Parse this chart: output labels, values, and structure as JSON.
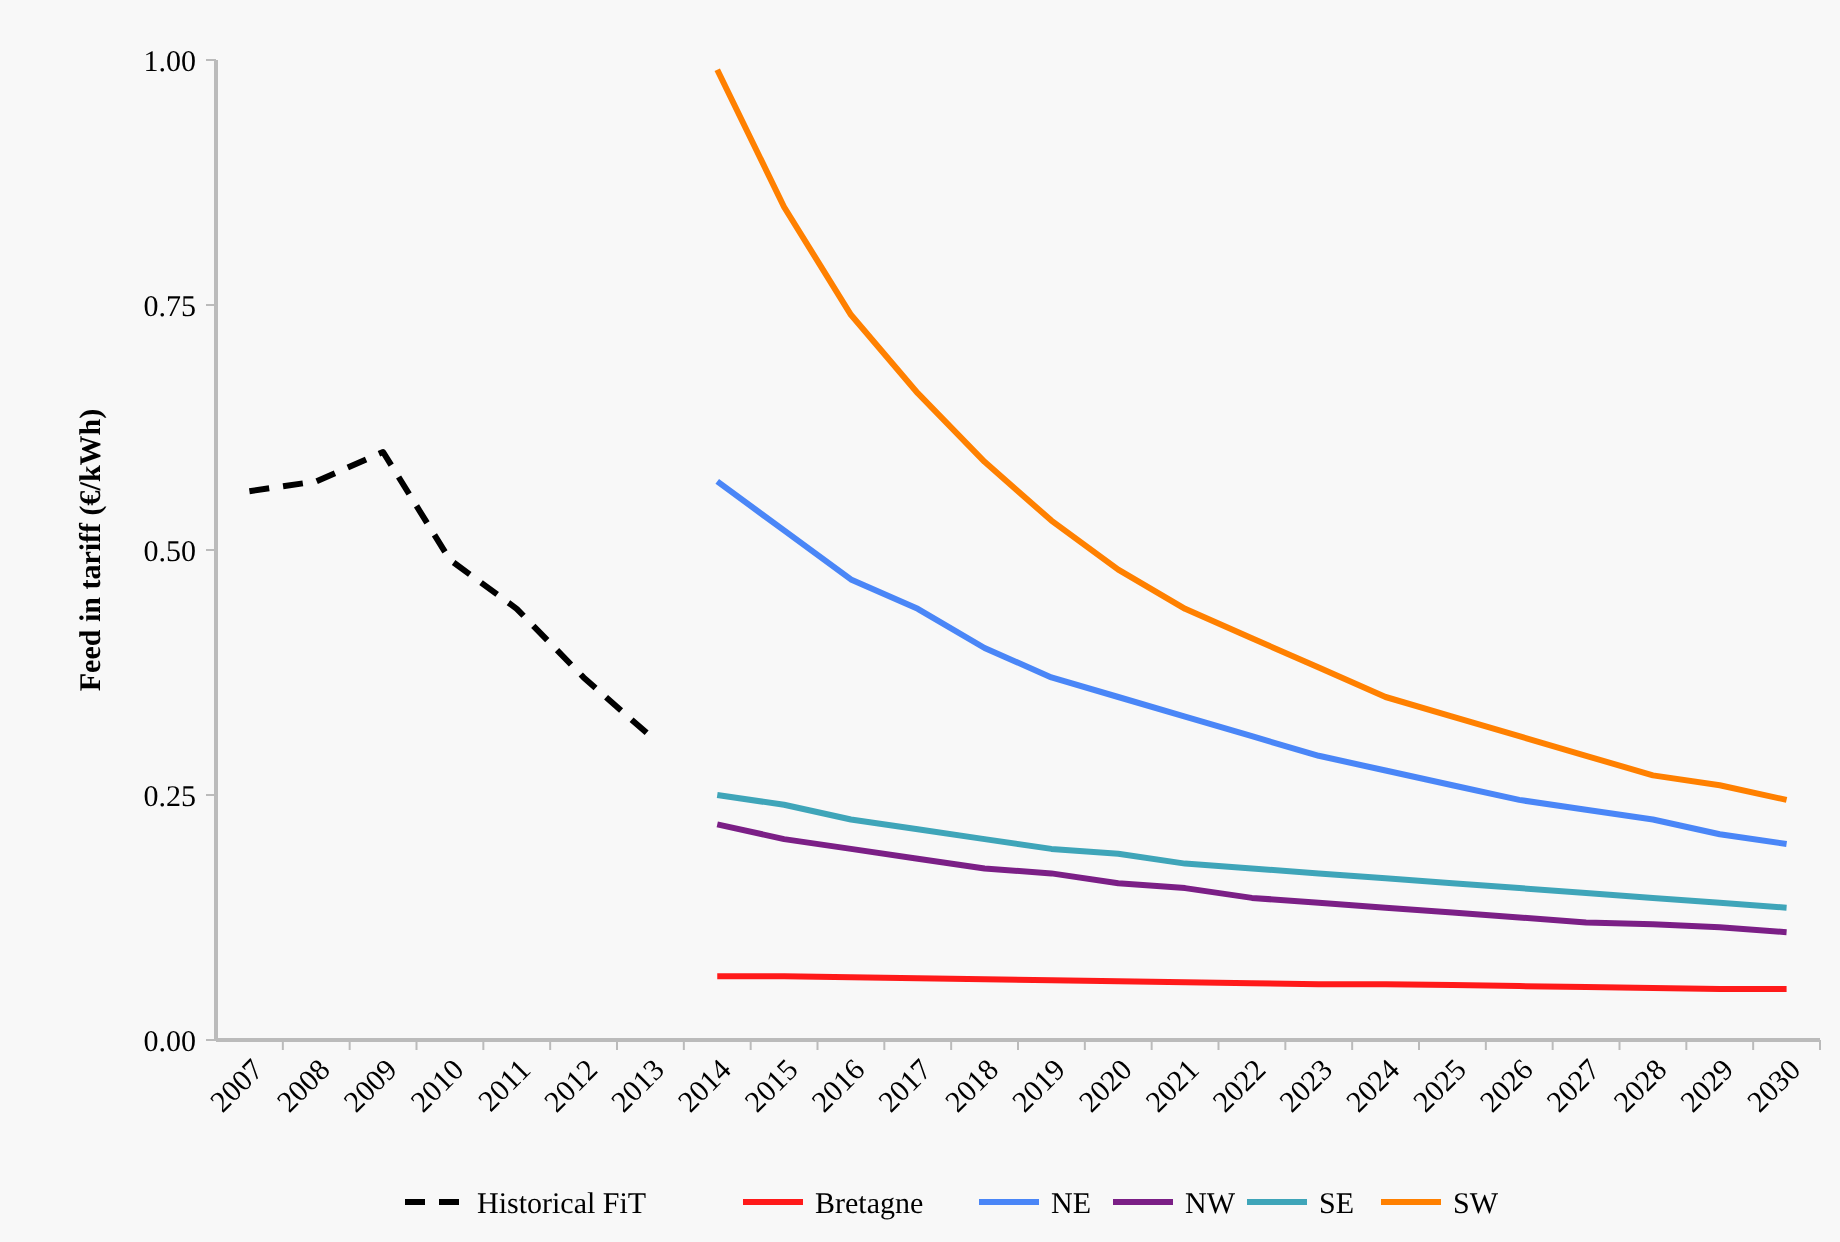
{
  "chart_data": {
    "type": "line",
    "ylabel": "Feed in tariff (€/kWh)",
    "categories": [
      "2007",
      "2008",
      "2009",
      "2010",
      "2011",
      "2012",
      "2013",
      "2014",
      "2015",
      "2016",
      "2017",
      "2018",
      "2019",
      "2020",
      "2021",
      "2022",
      "2023",
      "2024",
      "2025",
      "2026",
      "2027",
      "2028",
      "2029",
      "2030"
    ],
    "series": [
      {
        "name": "Historical FiT",
        "color": "#000000",
        "line_style": "dashed",
        "values": [
          0.56,
          0.57,
          0.6,
          0.49,
          0.44,
          0.37,
          0.31,
          null,
          null,
          null,
          null,
          null,
          null,
          null,
          null,
          null,
          null,
          null,
          null,
          null,
          null,
          null,
          null,
          null
        ]
      },
      {
        "name": "Bretagne",
        "color": "#ff1a1a",
        "values": [
          null,
          null,
          null,
          null,
          null,
          null,
          null,
          0.065,
          0.065,
          0.064,
          0.063,
          0.062,
          0.061,
          0.06,
          0.059,
          0.058,
          0.057,
          0.057,
          0.056,
          0.055,
          0.054,
          0.053,
          0.052,
          0.052
        ]
      },
      {
        "name": "NE",
        "color": "#4a86f7",
        "values": [
          null,
          null,
          null,
          null,
          null,
          null,
          null,
          0.57,
          0.52,
          0.47,
          0.44,
          0.4,
          0.37,
          0.35,
          0.33,
          0.31,
          0.29,
          0.275,
          0.26,
          0.245,
          0.235,
          0.225,
          0.21,
          0.2
        ]
      },
      {
        "name": "NW",
        "color": "#7b1f86",
        "values": [
          null,
          null,
          null,
          null,
          null,
          null,
          null,
          0.22,
          0.205,
          0.195,
          0.185,
          0.175,
          0.17,
          0.16,
          0.155,
          0.145,
          0.14,
          0.135,
          0.13,
          0.125,
          0.12,
          0.118,
          0.115,
          0.11
        ]
      },
      {
        "name": "SE",
        "color": "#3fa5b9",
        "values": [
          null,
          null,
          null,
          null,
          null,
          null,
          null,
          0.25,
          0.24,
          0.225,
          0.215,
          0.205,
          0.195,
          0.19,
          0.18,
          0.175,
          0.17,
          0.165,
          0.16,
          0.155,
          0.15,
          0.145,
          0.14,
          0.135
        ]
      },
      {
        "name": "SW",
        "color": "#ff8000",
        "values": [
          null,
          null,
          null,
          null,
          null,
          null,
          null,
          0.99,
          0.85,
          0.74,
          0.66,
          0.59,
          0.53,
          0.48,
          0.44,
          0.41,
          0.38,
          0.35,
          0.33,
          0.31,
          0.29,
          0.27,
          0.26,
          0.245
        ]
      }
    ],
    "ylim": [
      0,
      1
    ],
    "yticks": [
      {
        "value": 0,
        "label": "0.00"
      },
      {
        "value": 0.25,
        "label": "0.25"
      },
      {
        "value": 0.5,
        "label": "0.50"
      },
      {
        "value": 0.75,
        "label": "0.75"
      },
      {
        "value": 1,
        "label": "1.00"
      }
    ],
    "grid": false,
    "legend": "bottom",
    "marker": "none"
  }
}
